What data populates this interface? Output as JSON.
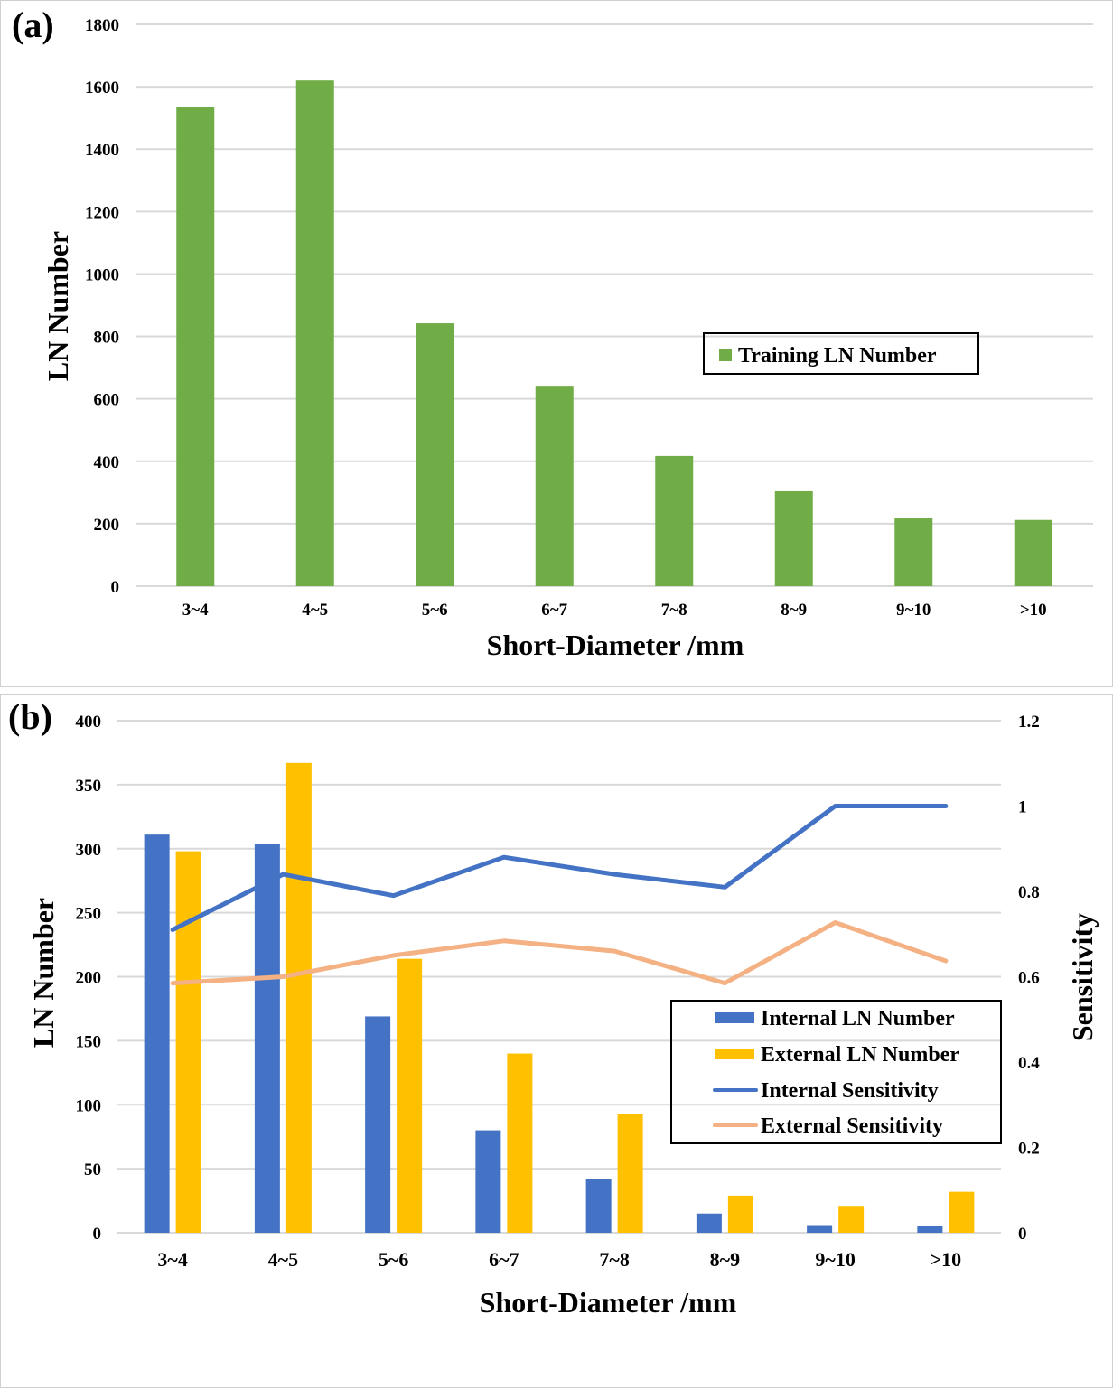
{
  "chart_data": [
    {
      "type": "bar",
      "panel_label": "(a)",
      "title": "",
      "categories": [
        "3~4",
        "4~5",
        "5~6",
        "6~7",
        "7~8",
        "8~9",
        "9~10",
        ">10"
      ],
      "series": [
        {
          "name": "Training LN Number",
          "color": "#70ad47",
          "values": [
            1534,
            1620,
            842,
            642,
            417,
            304,
            217,
            212
          ]
        }
      ],
      "xlabel": "Short-Diameter /mm",
      "ylabel": "LN Number",
      "ylim": [
        0,
        1800
      ],
      "yticks": [
        "0",
        "200",
        "400",
        "600",
        "800",
        "1000",
        "1200",
        "1400",
        "1600",
        "1800"
      ],
      "grid": true,
      "legend": "center-right"
    },
    {
      "type": "bar",
      "panel_label": "(b)",
      "title": "",
      "categories": [
        "3~4",
        "4~5",
        "5~6",
        "6~7",
        "7~8",
        "8~9",
        "9~10",
        ">10"
      ],
      "series": [
        {
          "name": "Internal LN Number",
          "type": "bar",
          "axis": "left",
          "color": "#4472c4",
          "values": [
            311,
            304,
            169,
            80,
            42,
            15,
            6,
            5
          ]
        },
        {
          "name": "External LN Number",
          "type": "bar",
          "axis": "left",
          "color": "#ffc000",
          "values": [
            298,
            367,
            214,
            140,
            93,
            29,
            21,
            32
          ]
        },
        {
          "name": "Internal Sensitivity",
          "type": "line",
          "axis": "right",
          "color": "#4472c4",
          "values": [
            0.71,
            0.84,
            0.79,
            0.88,
            0.84,
            0.81,
            1.0,
            1.0
          ]
        },
        {
          "name": "External Sensitivity",
          "type": "line",
          "axis": "right",
          "color": "#f4b183",
          "values": [
            0.585,
            0.6,
            0.65,
            0.684,
            0.66,
            0.585,
            0.727,
            0.637
          ]
        }
      ],
      "xlabel": "Short-Diameter /mm",
      "ylabel": "LN Number",
      "ylabel_right": "Sensitivity",
      "ylim": [
        0,
        400
      ],
      "ylim_right": [
        0,
        1.2
      ],
      "yticks": [
        "0",
        "50",
        "100",
        "150",
        "200",
        "250",
        "300",
        "350",
        "400"
      ],
      "yticks_right": [
        "0",
        "0.2",
        "0.4",
        "0.6",
        "0.8",
        "1",
        "1.2"
      ],
      "grid": true,
      "legend": "lower-right"
    }
  ]
}
